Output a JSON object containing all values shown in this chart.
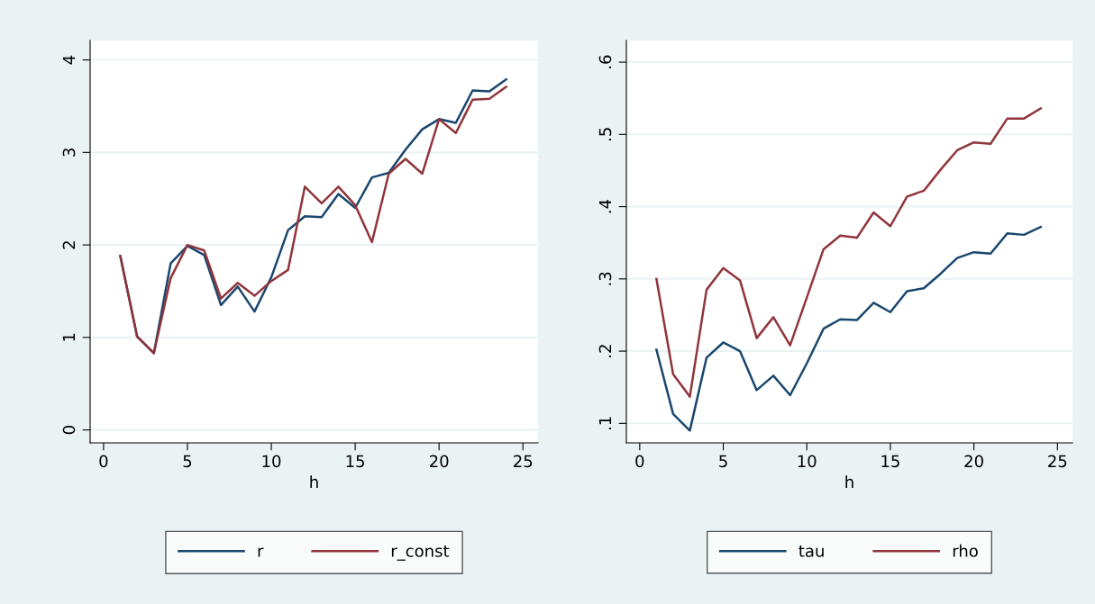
{
  "chart_data": [
    {
      "type": "line",
      "xlabel": "h",
      "x": [
        1,
        2,
        3,
        4,
        5,
        6,
        7,
        8,
        9,
        10,
        11,
        12,
        13,
        14,
        15,
        16,
        17,
        18,
        19,
        20,
        21,
        22,
        23,
        24
      ],
      "xlim": [
        -0.8,
        25.9
      ],
      "xticks": [
        0,
        5,
        10,
        15,
        20,
        25
      ],
      "ylim": [
        -0.14,
        4.21
      ],
      "yticks": [
        0,
        1,
        2,
        3,
        4
      ],
      "grid": "y",
      "legend": "bottom",
      "series": [
        {
          "name": "r",
          "color": "#1a476f",
          "values": [
            1.88,
            1.01,
            0.83,
            1.8,
            1.99,
            1.89,
            1.35,
            1.55,
            1.28,
            1.65,
            2.16,
            2.31,
            2.3,
            2.55,
            2.4,
            2.73,
            2.78,
            3.03,
            3.25,
            3.36,
            3.32,
            3.67,
            3.66,
            3.79
          ]
        },
        {
          "name": "r_const",
          "color": "#90353b",
          "values": [
            1.88,
            1.01,
            0.83,
            1.64,
            2.0,
            1.94,
            1.42,
            1.59,
            1.45,
            1.61,
            1.73,
            2.63,
            2.45,
            2.63,
            2.43,
            2.03,
            2.77,
            2.93,
            2.77,
            3.36,
            3.21,
            3.57,
            3.58,
            3.71
          ]
        }
      ]
    },
    {
      "type": "line",
      "xlabel": "h",
      "x": [
        1,
        2,
        3,
        4,
        5,
        6,
        7,
        8,
        9,
        10,
        11,
        12,
        13,
        14,
        15,
        16,
        17,
        18,
        19,
        20,
        21,
        22,
        23,
        24
      ],
      "xlim": [
        -0.8,
        25.9
      ],
      "xticks": [
        0,
        5,
        10,
        15,
        20,
        25
      ],
      "ylim": [
        0.073,
        0.63
      ],
      "yticks": [
        {
          "value": 0.1,
          "label": ".1"
        },
        {
          "value": 0.2,
          "label": ".2"
        },
        {
          "value": 0.3,
          "label": ".3"
        },
        {
          "value": 0.4,
          "label": ".4"
        },
        {
          "value": 0.5,
          "label": ".5"
        },
        {
          "value": 0.6,
          "label": ".6"
        }
      ],
      "grid": "y",
      "legend": "bottom",
      "series": [
        {
          "name": "tau",
          "color": "#1a476f",
          "values": [
            0.202,
            0.113,
            0.09,
            0.191,
            0.212,
            0.2,
            0.146,
            0.166,
            0.139,
            0.183,
            0.231,
            0.244,
            0.243,
            0.267,
            0.254,
            0.283,
            0.287,
            0.307,
            0.329,
            0.337,
            0.335,
            0.363,
            0.361,
            0.372
          ]
        },
        {
          "name": "rho",
          "color": "#90353b",
          "values": [
            0.3,
            0.168,
            0.137,
            0.285,
            0.315,
            0.298,
            0.218,
            0.247,
            0.208,
            0.274,
            0.341,
            0.36,
            0.357,
            0.392,
            0.373,
            0.414,
            0.422,
            0.451,
            0.478,
            0.489,
            0.487,
            0.522,
            0.522,
            0.536
          ]
        }
      ]
    }
  ]
}
